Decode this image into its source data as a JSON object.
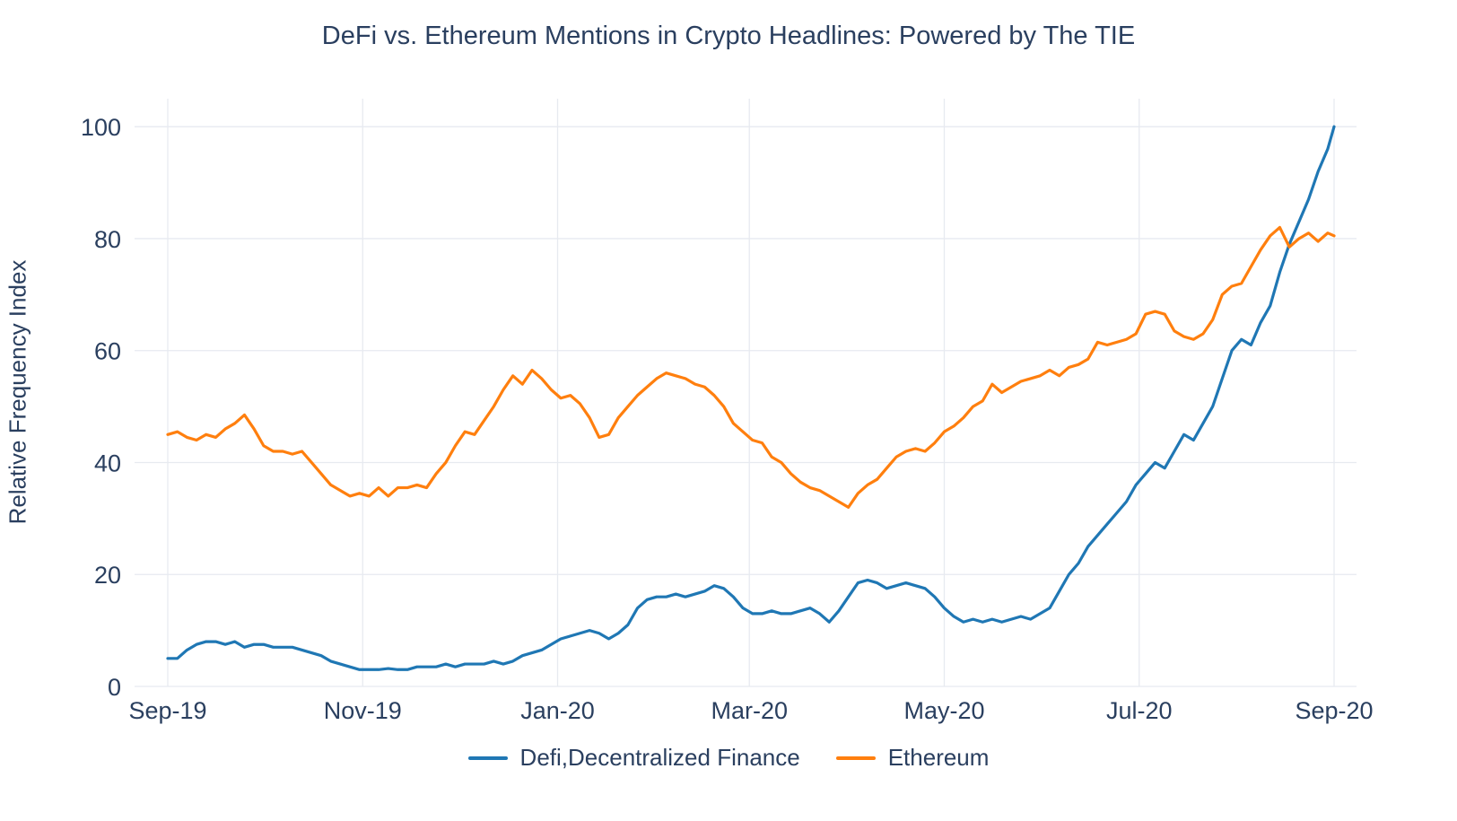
{
  "title": "DeFi vs. Ethereum Mentions in Crypto Headlines: Powered by The TIE",
  "y_axis_title": "Relative Frequency Index",
  "legend": [
    {
      "label": "Defi,Decentralized Finance",
      "color": "#1f77b4"
    },
    {
      "label": "Ethereum",
      "color": "#ff7f0e"
    }
  ],
  "chart_data": {
    "type": "line",
    "title": "DeFi vs. Ethereum Mentions in Crypto Headlines: Powered by The TIE",
    "xlabel": "",
    "ylabel": "Relative Frequency Index",
    "x_unit": "days since Sep-2019",
    "xlim": [
      0,
      365
    ],
    "ylim": [
      0,
      105
    ],
    "grid": true,
    "grid_color": "#e7eaf0",
    "tick_color": "#2a3f5f",
    "legend_position": "bottom",
    "x_ticks": [
      {
        "pos": 0,
        "label": "Sep-19"
      },
      {
        "pos": 61,
        "label": "Nov-19"
      },
      {
        "pos": 122,
        "label": "Jan-20"
      },
      {
        "pos": 182,
        "label": "Mar-20"
      },
      {
        "pos": 243,
        "label": "May-20"
      },
      {
        "pos": 304,
        "label": "Jul-20"
      },
      {
        "pos": 365,
        "label": "Sep-20"
      }
    ],
    "y_ticks": [
      0,
      20,
      40,
      60,
      80,
      100
    ],
    "x": [
      0,
      3,
      6,
      9,
      12,
      15,
      18,
      21,
      24,
      27,
      30,
      33,
      36,
      39,
      42,
      45,
      48,
      51,
      54,
      57,
      60,
      63,
      66,
      69,
      72,
      75,
      78,
      81,
      84,
      87,
      90,
      93,
      96,
      99,
      102,
      105,
      108,
      111,
      114,
      117,
      120,
      123,
      126,
      129,
      132,
      135,
      138,
      141,
      144,
      147,
      150,
      153,
      156,
      159,
      162,
      165,
      168,
      171,
      174,
      177,
      180,
      183,
      186,
      189,
      192,
      195,
      198,
      201,
      204,
      207,
      210,
      213,
      216,
      219,
      222,
      225,
      228,
      231,
      234,
      237,
      240,
      243,
      246,
      249,
      252,
      255,
      258,
      261,
      264,
      267,
      270,
      273,
      276,
      279,
      282,
      285,
      288,
      291,
      294,
      297,
      300,
      303,
      306,
      309,
      312,
      315,
      318,
      321,
      324,
      327,
      330,
      333,
      336,
      339,
      342,
      345,
      348,
      351,
      354,
      357,
      360,
      363,
      365
    ],
    "series": [
      {
        "id": "defi",
        "name": "Defi,Decentralized Finance",
        "color": "#1f77b4",
        "values": [
          5,
          5,
          6.5,
          7.5,
          8,
          8,
          7.5,
          8,
          7,
          7.5,
          7.5,
          7,
          7,
          7,
          6.5,
          6,
          5.5,
          4.5,
          4,
          3.5,
          3,
          3,
          3,
          3.2,
          3,
          3,
          3.5,
          3.5,
          3.5,
          4,
          3.5,
          4,
          4,
          4,
          4.5,
          4,
          4.5,
          5.5,
          6,
          6.5,
          7.5,
          8.5,
          9,
          9.5,
          10,
          9.5,
          8.5,
          9.5,
          11,
          14,
          15.5,
          16,
          16,
          16.5,
          16,
          16.5,
          17,
          18,
          17.5,
          16,
          14,
          13,
          13,
          13.5,
          13,
          13,
          13.5,
          14,
          13,
          11.5,
          13.5,
          16,
          18.5,
          19,
          18.5,
          17.5,
          18,
          18.5,
          18,
          17.5,
          16,
          14,
          12.5,
          11.5,
          12,
          11.5,
          12,
          11.5,
          12,
          12.5,
          12,
          13,
          14,
          17,
          20,
          22,
          25,
          27,
          29,
          31,
          33,
          36,
          38,
          40,
          39,
          42,
          45,
          44,
          47,
          50,
          55,
          60,
          62,
          61,
          65,
          68,
          74,
          79,
          83,
          87,
          92,
          96,
          100
        ]
      },
      {
        "id": "ethereum",
        "name": "Ethereum",
        "color": "#ff7f0e",
        "values": [
          45,
          45.5,
          44.5,
          44,
          45,
          44.5,
          46,
          47,
          48.5,
          46,
          43,
          42,
          42,
          41.5,
          42,
          40,
          38,
          36,
          35,
          34,
          34.5,
          34,
          35.5,
          34,
          35.5,
          35.5,
          36,
          35.5,
          38,
          40,
          43,
          45.5,
          45,
          47.5,
          50,
          53,
          55.5,
          54,
          56.5,
          55,
          53,
          51.5,
          52,
          50.5,
          48,
          44.5,
          45,
          48,
          50,
          52,
          53.5,
          55,
          56,
          55.5,
          55,
          54,
          53.5,
          52,
          50,
          47,
          45.5,
          44,
          43.5,
          41,
          40,
          38,
          36.5,
          35.5,
          35,
          34,
          33,
          32,
          34.5,
          36,
          37,
          39,
          41,
          42,
          42.5,
          42,
          43.5,
          45.5,
          46.5,
          48,
          50,
          51,
          54,
          52.5,
          53.5,
          54.5,
          55,
          55.5,
          56.5,
          55.5,
          57,
          57.5,
          58.5,
          61.5,
          61,
          61.5,
          62,
          63,
          66.5,
          67,
          66.5,
          63.5,
          62.5,
          62,
          63,
          65.5,
          70,
          71.5,
          72,
          75,
          78,
          80.5,
          82,
          78.5,
          80,
          81,
          79.5,
          81,
          80.5
        ]
      }
    ]
  }
}
